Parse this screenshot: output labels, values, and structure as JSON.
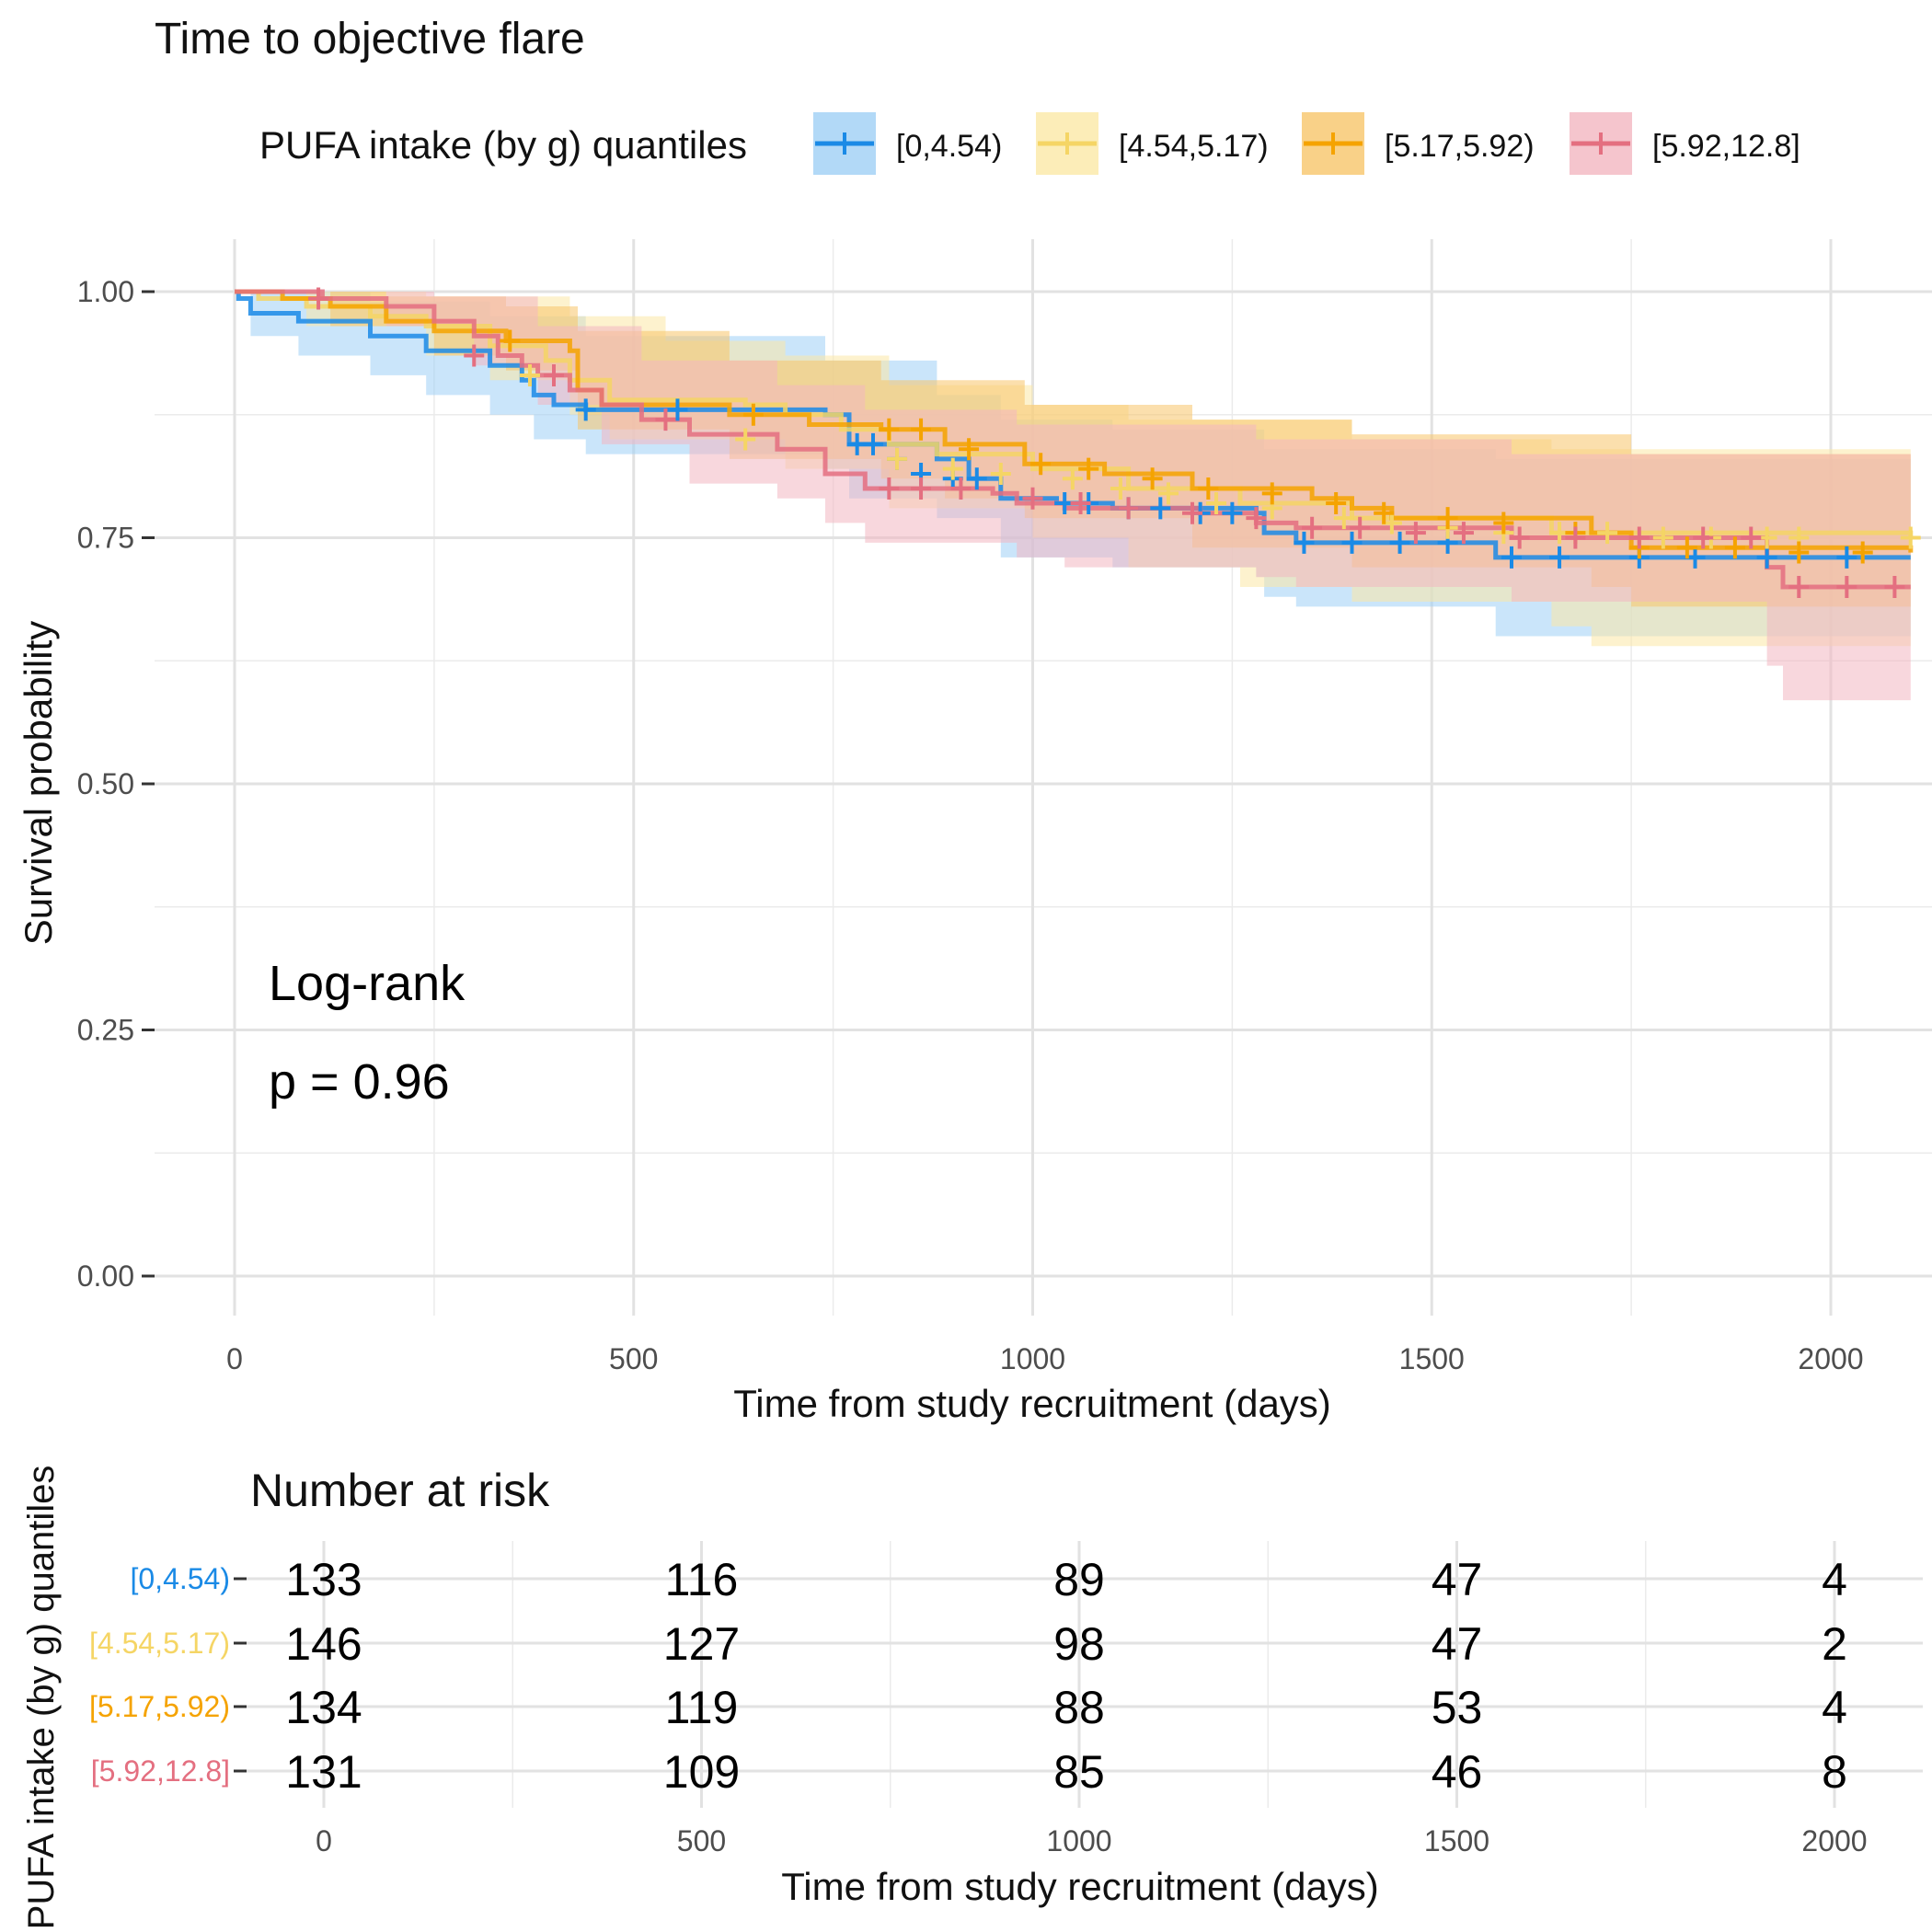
{
  "chart_data": {
    "type": "line",
    "title": "Time to objective flare",
    "xlabel": "Time from study recruitment (days)",
    "ylabel": "Survival probability",
    "xlim": [
      0,
      2100
    ],
    "ylim": [
      0,
      1
    ],
    "x_ticks": [
      "0",
      "500",
      "1000",
      "1500",
      "2000"
    ],
    "y_ticks": [
      "0.00",
      "0.25",
      "0.50",
      "0.75",
      "1.00"
    ],
    "grid": true,
    "legend": {
      "title": "PUFA intake (by g) quantiles",
      "position": "top",
      "items": [
        "[0,4.54)",
        "[4.54,5.17)",
        "[5.17,5.92)",
        "[5.92,12.8]"
      ]
    },
    "annotation": {
      "line1": "Log-rank",
      "line2": "p = 0.96"
    },
    "series": [
      {
        "name": "[0,4.54)",
        "color": "#1a8ae6",
        "band": "#9fd0f5",
        "steps": [
          [
            0,
            1.0
          ],
          [
            5,
            0.993
          ],
          [
            20,
            0.978
          ],
          [
            80,
            0.97
          ],
          [
            170,
            0.955
          ],
          [
            240,
            0.94
          ],
          [
            320,
            0.925
          ],
          [
            360,
            0.91
          ],
          [
            375,
            0.895
          ],
          [
            400,
            0.885
          ],
          [
            440,
            0.88
          ],
          [
            740,
            0.875
          ],
          [
            770,
            0.845
          ],
          [
            880,
            0.83
          ],
          [
            920,
            0.81
          ],
          [
            960,
            0.79
          ],
          [
            1030,
            0.785
          ],
          [
            1100,
            0.78
          ],
          [
            1280,
            0.775
          ],
          [
            1290,
            0.755
          ],
          [
            1330,
            0.745
          ],
          [
            1580,
            0.73
          ],
          [
            2100,
            0.73
          ]
        ],
        "lower": [
          [
            0,
            1.0
          ],
          [
            20,
            0.955
          ],
          [
            80,
            0.935
          ],
          [
            170,
            0.915
          ],
          [
            240,
            0.895
          ],
          [
            320,
            0.875
          ],
          [
            375,
            0.85
          ],
          [
            440,
            0.835
          ],
          [
            740,
            0.82
          ],
          [
            770,
            0.79
          ],
          [
            880,
            0.77
          ],
          [
            960,
            0.73
          ],
          [
            1100,
            0.72
          ],
          [
            1280,
            0.71
          ],
          [
            1290,
            0.69
          ],
          [
            1330,
            0.68
          ],
          [
            1580,
            0.65
          ],
          [
            2100,
            0.65
          ]
        ],
        "upper": [
          [
            0,
            1.0
          ],
          [
            170,
            0.99
          ],
          [
            320,
            0.975
          ],
          [
            440,
            0.955
          ],
          [
            740,
            0.93
          ],
          [
            880,
            0.895
          ],
          [
            960,
            0.87
          ],
          [
            1100,
            0.86
          ],
          [
            1290,
            0.84
          ],
          [
            1580,
            0.83
          ],
          [
            2100,
            0.83
          ]
        ],
        "censors": [
          [
            440,
            0.88
          ],
          [
            555,
            0.88
          ],
          [
            780,
            0.845
          ],
          [
            800,
            0.845
          ],
          [
            830,
            0.83
          ],
          [
            860,
            0.815
          ],
          [
            900,
            0.81
          ],
          [
            930,
            0.81
          ],
          [
            1040,
            0.785
          ],
          [
            1070,
            0.785
          ],
          [
            1120,
            0.78
          ],
          [
            1160,
            0.78
          ],
          [
            1210,
            0.775
          ],
          [
            1250,
            0.775
          ],
          [
            1340,
            0.745
          ],
          [
            1400,
            0.745
          ],
          [
            1460,
            0.745
          ],
          [
            1520,
            0.745
          ],
          [
            1600,
            0.73
          ],
          [
            1660,
            0.73
          ],
          [
            1760,
            0.73
          ],
          [
            1830,
            0.73
          ],
          [
            1920,
            0.73
          ],
          [
            2020,
            0.73
          ]
        ]
      },
      {
        "name": "[4.54,5.17)",
        "color": "#f5d565",
        "band": "#fbe8a6",
        "steps": [
          [
            0,
            1.0
          ],
          [
            30,
            0.993
          ],
          [
            90,
            0.985
          ],
          [
            170,
            0.975
          ],
          [
            240,
            0.965
          ],
          [
            320,
            0.945
          ],
          [
            390,
            0.93
          ],
          [
            420,
            0.91
          ],
          [
            470,
            0.89
          ],
          [
            640,
            0.885
          ],
          [
            690,
            0.875
          ],
          [
            760,
            0.86
          ],
          [
            820,
            0.845
          ],
          [
            880,
            0.835
          ],
          [
            1000,
            0.82
          ],
          [
            1120,
            0.8
          ],
          [
            1260,
            0.785
          ],
          [
            1400,
            0.77
          ],
          [
            1650,
            0.755
          ],
          [
            2100,
            0.75
          ]
        ],
        "lower": [
          [
            0,
            1.0
          ],
          [
            90,
            0.965
          ],
          [
            240,
            0.935
          ],
          [
            320,
            0.91
          ],
          [
            420,
            0.875
          ],
          [
            470,
            0.85
          ],
          [
            690,
            0.82
          ],
          [
            820,
            0.78
          ],
          [
            1000,
            0.75
          ],
          [
            1120,
            0.72
          ],
          [
            1260,
            0.7
          ],
          [
            1400,
            0.685
          ],
          [
            1650,
            0.66
          ],
          [
            1700,
            0.64
          ],
          [
            2100,
            0.64
          ]
        ],
        "upper": [
          [
            0,
            1.0
          ],
          [
            240,
            0.995
          ],
          [
            420,
            0.975
          ],
          [
            540,
            0.95
          ],
          [
            690,
            0.935
          ],
          [
            820,
            0.905
          ],
          [
            1000,
            0.885
          ],
          [
            1120,
            0.87
          ],
          [
            1400,
            0.85
          ],
          [
            1650,
            0.84
          ],
          [
            2100,
            0.84
          ]
        ],
        "censors": [
          [
            370,
            0.915
          ],
          [
            640,
            0.85
          ],
          [
            830,
            0.83
          ],
          [
            900,
            0.82
          ],
          [
            960,
            0.815
          ],
          [
            1050,
            0.81
          ],
          [
            1110,
            0.8
          ],
          [
            1170,
            0.795
          ],
          [
            1230,
            0.785
          ],
          [
            1300,
            0.78
          ],
          [
            1390,
            0.77
          ],
          [
            1450,
            0.765
          ],
          [
            1520,
            0.76
          ],
          [
            1590,
            0.755
          ],
          [
            1660,
            0.755
          ],
          [
            1720,
            0.755
          ],
          [
            1790,
            0.75
          ],
          [
            1850,
            0.75
          ],
          [
            1920,
            0.75
          ],
          [
            1960,
            0.75
          ],
          [
            2100,
            0.75
          ]
        ]
      },
      {
        "name": "[5.17,5.92)",
        "color": "#f5a300",
        "band": "#f7c56a",
        "steps": [
          [
            0,
            1.0
          ],
          [
            60,
            0.993
          ],
          [
            120,
            0.985
          ],
          [
            190,
            0.97
          ],
          [
            250,
            0.96
          ],
          [
            340,
            0.95
          ],
          [
            420,
            0.94
          ],
          [
            430,
            0.9
          ],
          [
            460,
            0.885
          ],
          [
            620,
            0.875
          ],
          [
            720,
            0.865
          ],
          [
            810,
            0.86
          ],
          [
            890,
            0.845
          ],
          [
            990,
            0.825
          ],
          [
            1090,
            0.815
          ],
          [
            1200,
            0.8
          ],
          [
            1350,
            0.79
          ],
          [
            1400,
            0.78
          ],
          [
            1450,
            0.77
          ],
          [
            1700,
            0.755
          ],
          [
            1750,
            0.74
          ],
          [
            2100,
            0.735
          ]
        ],
        "lower": [
          [
            0,
            1.0
          ],
          [
            120,
            0.965
          ],
          [
            250,
            0.935
          ],
          [
            340,
            0.92
          ],
          [
            430,
            0.86
          ],
          [
            620,
            0.83
          ],
          [
            810,
            0.81
          ],
          [
            890,
            0.79
          ],
          [
            990,
            0.77
          ],
          [
            1200,
            0.74
          ],
          [
            1400,
            0.72
          ],
          [
            1700,
            0.7
          ],
          [
            1750,
            0.68
          ],
          [
            2100,
            0.68
          ]
        ],
        "upper": [
          [
            0,
            1.0
          ],
          [
            190,
            0.995
          ],
          [
            340,
            0.985
          ],
          [
            430,
            0.96
          ],
          [
            620,
            0.93
          ],
          [
            810,
            0.91
          ],
          [
            990,
            0.885
          ],
          [
            1200,
            0.87
          ],
          [
            1400,
            0.855
          ],
          [
            1750,
            0.835
          ],
          [
            2100,
            0.835
          ]
        ],
        "censors": [
          [
            345,
            0.95
          ],
          [
            650,
            0.875
          ],
          [
            820,
            0.86
          ],
          [
            860,
            0.86
          ],
          [
            920,
            0.84
          ],
          [
            1010,
            0.825
          ],
          [
            1070,
            0.82
          ],
          [
            1150,
            0.81
          ],
          [
            1220,
            0.8
          ],
          [
            1300,
            0.795
          ],
          [
            1380,
            0.785
          ],
          [
            1440,
            0.775
          ],
          [
            1520,
            0.77
          ],
          [
            1590,
            0.765
          ],
          [
            1680,
            0.755
          ],
          [
            1760,
            0.74
          ],
          [
            1820,
            0.74
          ],
          [
            1880,
            0.74
          ],
          [
            1960,
            0.735
          ],
          [
            2040,
            0.735
          ]
        ]
      },
      {
        "name": "[5.92,12.8]",
        "color": "#e46f80",
        "band": "#f3b6c1",
        "steps": [
          [
            0,
            1.0
          ],
          [
            110,
            0.993
          ],
          [
            190,
            0.985
          ],
          [
            250,
            0.97
          ],
          [
            300,
            0.955
          ],
          [
            330,
            0.935
          ],
          [
            360,
            0.925
          ],
          [
            380,
            0.915
          ],
          [
            420,
            0.9
          ],
          [
            460,
            0.885
          ],
          [
            510,
            0.87
          ],
          [
            570,
            0.855
          ],
          [
            680,
            0.84
          ],
          [
            740,
            0.815
          ],
          [
            790,
            0.8
          ],
          [
            950,
            0.795
          ],
          [
            980,
            0.785
          ],
          [
            1040,
            0.78
          ],
          [
            1210,
            0.775
          ],
          [
            1280,
            0.765
          ],
          [
            1330,
            0.76
          ],
          [
            1600,
            0.75
          ],
          [
            1920,
            0.72
          ],
          [
            1940,
            0.7
          ],
          [
            2100,
            0.7
          ]
        ],
        "lower": [
          [
            0,
            1.0
          ],
          [
            190,
            0.965
          ],
          [
            300,
            0.925
          ],
          [
            380,
            0.885
          ],
          [
            460,
            0.845
          ],
          [
            570,
            0.805
          ],
          [
            680,
            0.79
          ],
          [
            740,
            0.765
          ],
          [
            790,
            0.745
          ],
          [
            980,
            0.73
          ],
          [
            1040,
            0.72
          ],
          [
            1280,
            0.71
          ],
          [
            1330,
            0.7
          ],
          [
            1600,
            0.685
          ],
          [
            1920,
            0.62
          ],
          [
            1940,
            0.585
          ],
          [
            2100,
            0.585
          ]
        ],
        "upper": [
          [
            0,
            1.0
          ],
          [
            250,
            0.995
          ],
          [
            380,
            0.965
          ],
          [
            510,
            0.93
          ],
          [
            680,
            0.905
          ],
          [
            790,
            0.88
          ],
          [
            980,
            0.865
          ],
          [
            1280,
            0.85
          ],
          [
            1600,
            0.835
          ],
          [
            1920,
            0.835
          ],
          [
            2100,
            0.835
          ]
        ],
        "censors": [
          [
            105,
            0.993
          ],
          [
            300,
            0.935
          ],
          [
            400,
            0.915
          ],
          [
            540,
            0.87
          ],
          [
            820,
            0.8
          ],
          [
            860,
            0.8
          ],
          [
            910,
            0.8
          ],
          [
            1000,
            0.79
          ],
          [
            1060,
            0.785
          ],
          [
            1120,
            0.78
          ],
          [
            1200,
            0.775
          ],
          [
            1280,
            0.77
          ],
          [
            1350,
            0.76
          ],
          [
            1410,
            0.76
          ],
          [
            1480,
            0.755
          ],
          [
            1540,
            0.755
          ],
          [
            1610,
            0.75
          ],
          [
            1680,
            0.75
          ],
          [
            1760,
            0.75
          ],
          [
            1840,
            0.75
          ],
          [
            1900,
            0.75
          ],
          [
            1960,
            0.7
          ],
          [
            2020,
            0.7
          ],
          [
            2080,
            0.7
          ]
        ]
      }
    ]
  },
  "risk_table": {
    "title": "Number at risk",
    "ylabel": "PUFA intake (by g) quantiles",
    "xlabel": "Time from study recruitment (days)",
    "x_ticks": [
      "0",
      "500",
      "1000",
      "1500",
      "2000"
    ],
    "rows": [
      {
        "name": "[0,4.54)",
        "color": "#1a8ae6",
        "values": [
          "133",
          "116",
          "89",
          "47",
          "4"
        ]
      },
      {
        "name": "[4.54,5.17)",
        "color": "#f5d565",
        "values": [
          "146",
          "127",
          "98",
          "47",
          "2"
        ]
      },
      {
        "name": "[5.17,5.92)",
        "color": "#f5a300",
        "values": [
          "134",
          "119",
          "88",
          "53",
          "4"
        ]
      },
      {
        "name": "[5.92,12.8]",
        "color": "#e46f80",
        "values": [
          "131",
          "109",
          "85",
          "46",
          "8"
        ]
      }
    ]
  }
}
